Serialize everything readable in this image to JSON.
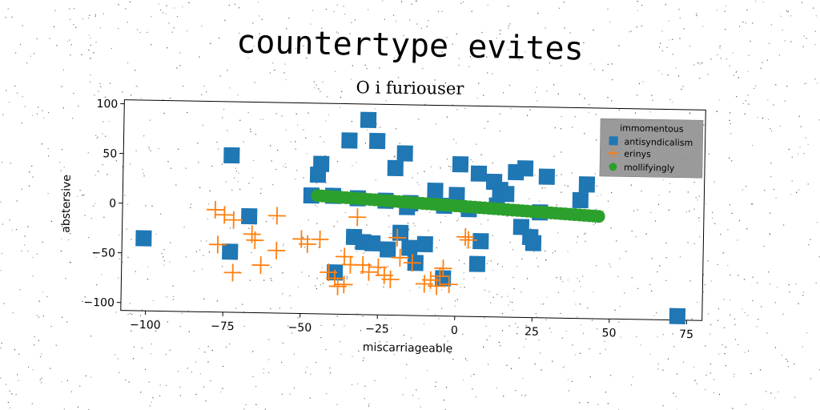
{
  "title": "countertype evites",
  "subtitle": "O i furiouser",
  "chart_data": {
    "type": "scatter",
    "xlabel": "miscarriageable",
    "ylabel": "abstersive",
    "xlim": [
      -108,
      80
    ],
    "ylim": [
      -108,
      104
    ],
    "xticks": [
      -100,
      -75,
      -50,
      -25,
      0,
      25,
      50,
      75
    ],
    "yticks": [
      -100,
      -50,
      0,
      50,
      100
    ],
    "grid": false,
    "legend": {
      "title": "immomentous",
      "placement": "top-right"
    },
    "series": [
      {
        "name": "antisyndicalism",
        "marker": "square",
        "color": "#1f77b4",
        "points": [
          [
            -101,
            -35
          ],
          [
            -73,
            50
          ],
          [
            -67,
            -11
          ],
          [
            -73,
            -47
          ],
          [
            -29,
            88
          ],
          [
            -35,
            67
          ],
          [
            -26,
            67
          ],
          [
            -17,
            55
          ],
          [
            -20,
            40
          ],
          [
            -44,
            43
          ],
          [
            -45,
            32
          ],
          [
            -47,
            11
          ],
          [
            -40,
            11
          ],
          [
            -32,
            9
          ],
          [
            -23,
            7
          ],
          [
            -15,
            5
          ],
          [
            -7,
            18
          ],
          [
            -15,
            5
          ],
          [
            0,
            14
          ],
          [
            1,
            45
          ],
          [
            7,
            36
          ],
          [
            12,
            28
          ],
          [
            14,
            20
          ],
          [
            16,
            16
          ],
          [
            19,
            38
          ],
          [
            22,
            42
          ],
          [
            29,
            34
          ],
          [
            42,
            27
          ],
          [
            40,
            11
          ],
          [
            8,
            -32
          ],
          [
            -33,
            -30
          ],
          [
            -30,
            -35
          ],
          [
            -27,
            -36
          ],
          [
            -22,
            -42
          ],
          [
            -18,
            -25
          ],
          [
            -15,
            -40
          ],
          [
            -13,
            -55
          ],
          [
            -10,
            -36
          ],
          [
            -4,
            -70
          ],
          [
            -39,
            -66
          ],
          [
            7,
            -55
          ],
          [
            21,
            -17
          ],
          [
            24,
            -27
          ],
          [
            25,
            -33
          ],
          [
            72,
            -104
          ],
          [
            -16,
            1
          ],
          [
            4,
            0
          ],
          [
            13,
            4
          ],
          [
            27,
            -2
          ],
          [
            -4,
            3
          ]
        ]
      },
      {
        "name": "erinys",
        "marker": "plus",
        "color": "#ff7f0e",
        "points": [
          [
            -78,
            -5
          ],
          [
            -75,
            -10
          ],
          [
            -77,
            -40
          ],
          [
            -72,
            -15
          ],
          [
            -72,
            -68
          ],
          [
            -66,
            -29
          ],
          [
            -65,
            -35
          ],
          [
            -63,
            -60
          ],
          [
            -58,
            -10
          ],
          [
            -58,
            -45
          ],
          [
            -50,
            -33
          ],
          [
            -48,
            -38
          ],
          [
            -44,
            -33
          ],
          [
            -41,
            -66
          ],
          [
            -39,
            -72
          ],
          [
            -38,
            -80
          ],
          [
            -36,
            -78
          ],
          [
            -36,
            -50
          ],
          [
            -34,
            -58
          ],
          [
            -32,
            -10
          ],
          [
            -30,
            -58
          ],
          [
            -28,
            -65
          ],
          [
            -25,
            -60
          ],
          [
            -23,
            -68
          ],
          [
            -21,
            -72
          ],
          [
            -19,
            -30
          ],
          [
            -18,
            -50
          ],
          [
            -14,
            -55
          ],
          [
            -10,
            -76
          ],
          [
            -8,
            -72
          ],
          [
            -6,
            -78
          ],
          [
            -5,
            -68
          ],
          [
            -2,
            -76
          ],
          [
            -4,
            -60
          ],
          [
            3,
            -28
          ],
          [
            4,
            -31
          ]
        ]
      },
      {
        "name": "mollifyingly",
        "marker": "circle",
        "color": "#2ca02c",
        "line": {
          "x": [
            -45,
            46
          ],
          "y": [
            11,
            -5
          ],
          "count": 60
        }
      }
    ]
  }
}
